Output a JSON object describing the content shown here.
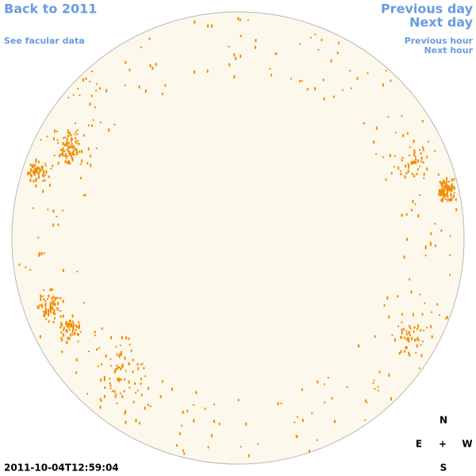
{
  "links": {
    "back": "Back to 2011",
    "facular": "See facular data",
    "previous_day": "Previous day",
    "next_day": "Next day",
    "previous_hour": "Previous hour",
    "next_hour": "Next hour"
  },
  "timestamp": "2011-10-04T12:59:04",
  "compass": {
    "north": "N",
    "east": "E",
    "center": "+",
    "west": "W",
    "south": "S"
  }
}
